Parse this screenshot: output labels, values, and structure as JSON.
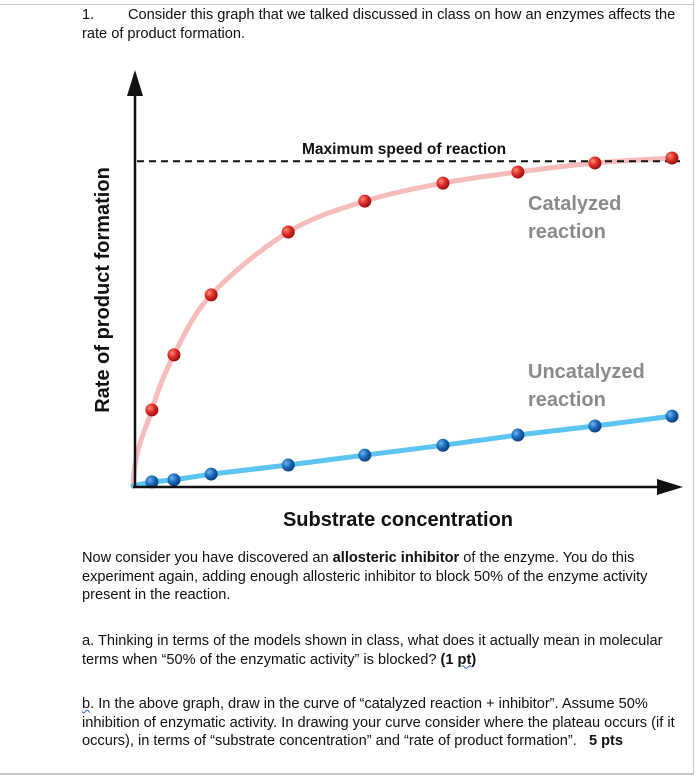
{
  "question": {
    "number": "1.",
    "intro": "Consider this graph that we talked discussed in class on how an enzymes affects the rate of product formation."
  },
  "chart_data": {
    "type": "scatter",
    "xlabel": "Substrate concentration",
    "ylabel": "Rate of product formation",
    "xlim": [
      0,
      101.5
    ],
    "ylim": [
      0,
      100
    ],
    "grid": false,
    "ticks": false,
    "annotation": "Maximum speed of reaction",
    "max_speed": 79,
    "series": [
      {
        "name": "Catalyzed reaction",
        "label_lines": [
          "Catalyzed",
          "reaction"
        ],
        "color": "#d42a2a",
        "line_color": "#f6bcbc",
        "x": [
          3.5,
          7.6,
          14.5,
          28.8,
          43.0,
          57.5,
          71.4,
          85.7,
          100
        ],
        "y": [
          18.5,
          31.9,
          46.5,
          61.8,
          69.3,
          73.7,
          76.4,
          78.6,
          79.8
        ]
      },
      {
        "name": "Uncatalyzed reaction",
        "label_lines": [
          "Uncatalyzed",
          "reaction"
        ],
        "color": "#1f6fbf",
        "line_color": "#5cc4f0",
        "x": [
          3.5,
          7.6,
          14.5,
          28.8,
          43.0,
          57.5,
          71.4,
          85.7,
          100
        ],
        "y": [
          1.0,
          1.5,
          2.9,
          5.1,
          7.5,
          9.9,
          12.4,
          14.6,
          17.0
        ]
      }
    ]
  },
  "paragraph": {
    "p1_before": "Now consider you have discovered an ",
    "p1_bold": "allosteric inhibitor",
    "p1_after": " of the enzyme. You do this experiment again, adding enough allosteric inhibitor to block 50% of the enzyme activity present in the reaction."
  },
  "part_a": {
    "text": "a. Thinking in terms of the models shown in class, what does it actually mean in molecular terms when “50% of the enzymatic activity” is blocked? ",
    "points_open": "(1 ",
    "points_pt": "pt",
    "points_close": ")"
  },
  "part_b": {
    "letter": "b",
    "text": ". In the above graph, draw in the curve of “catalyzed reaction + inhibitor”. Assume 50% inhibition of enzymatic activity. In drawing your curve consider where the plateau occurs (if it occurs), in terms of “substrate concentration” and “rate of product formation”.   ",
    "points": "5 pts"
  }
}
